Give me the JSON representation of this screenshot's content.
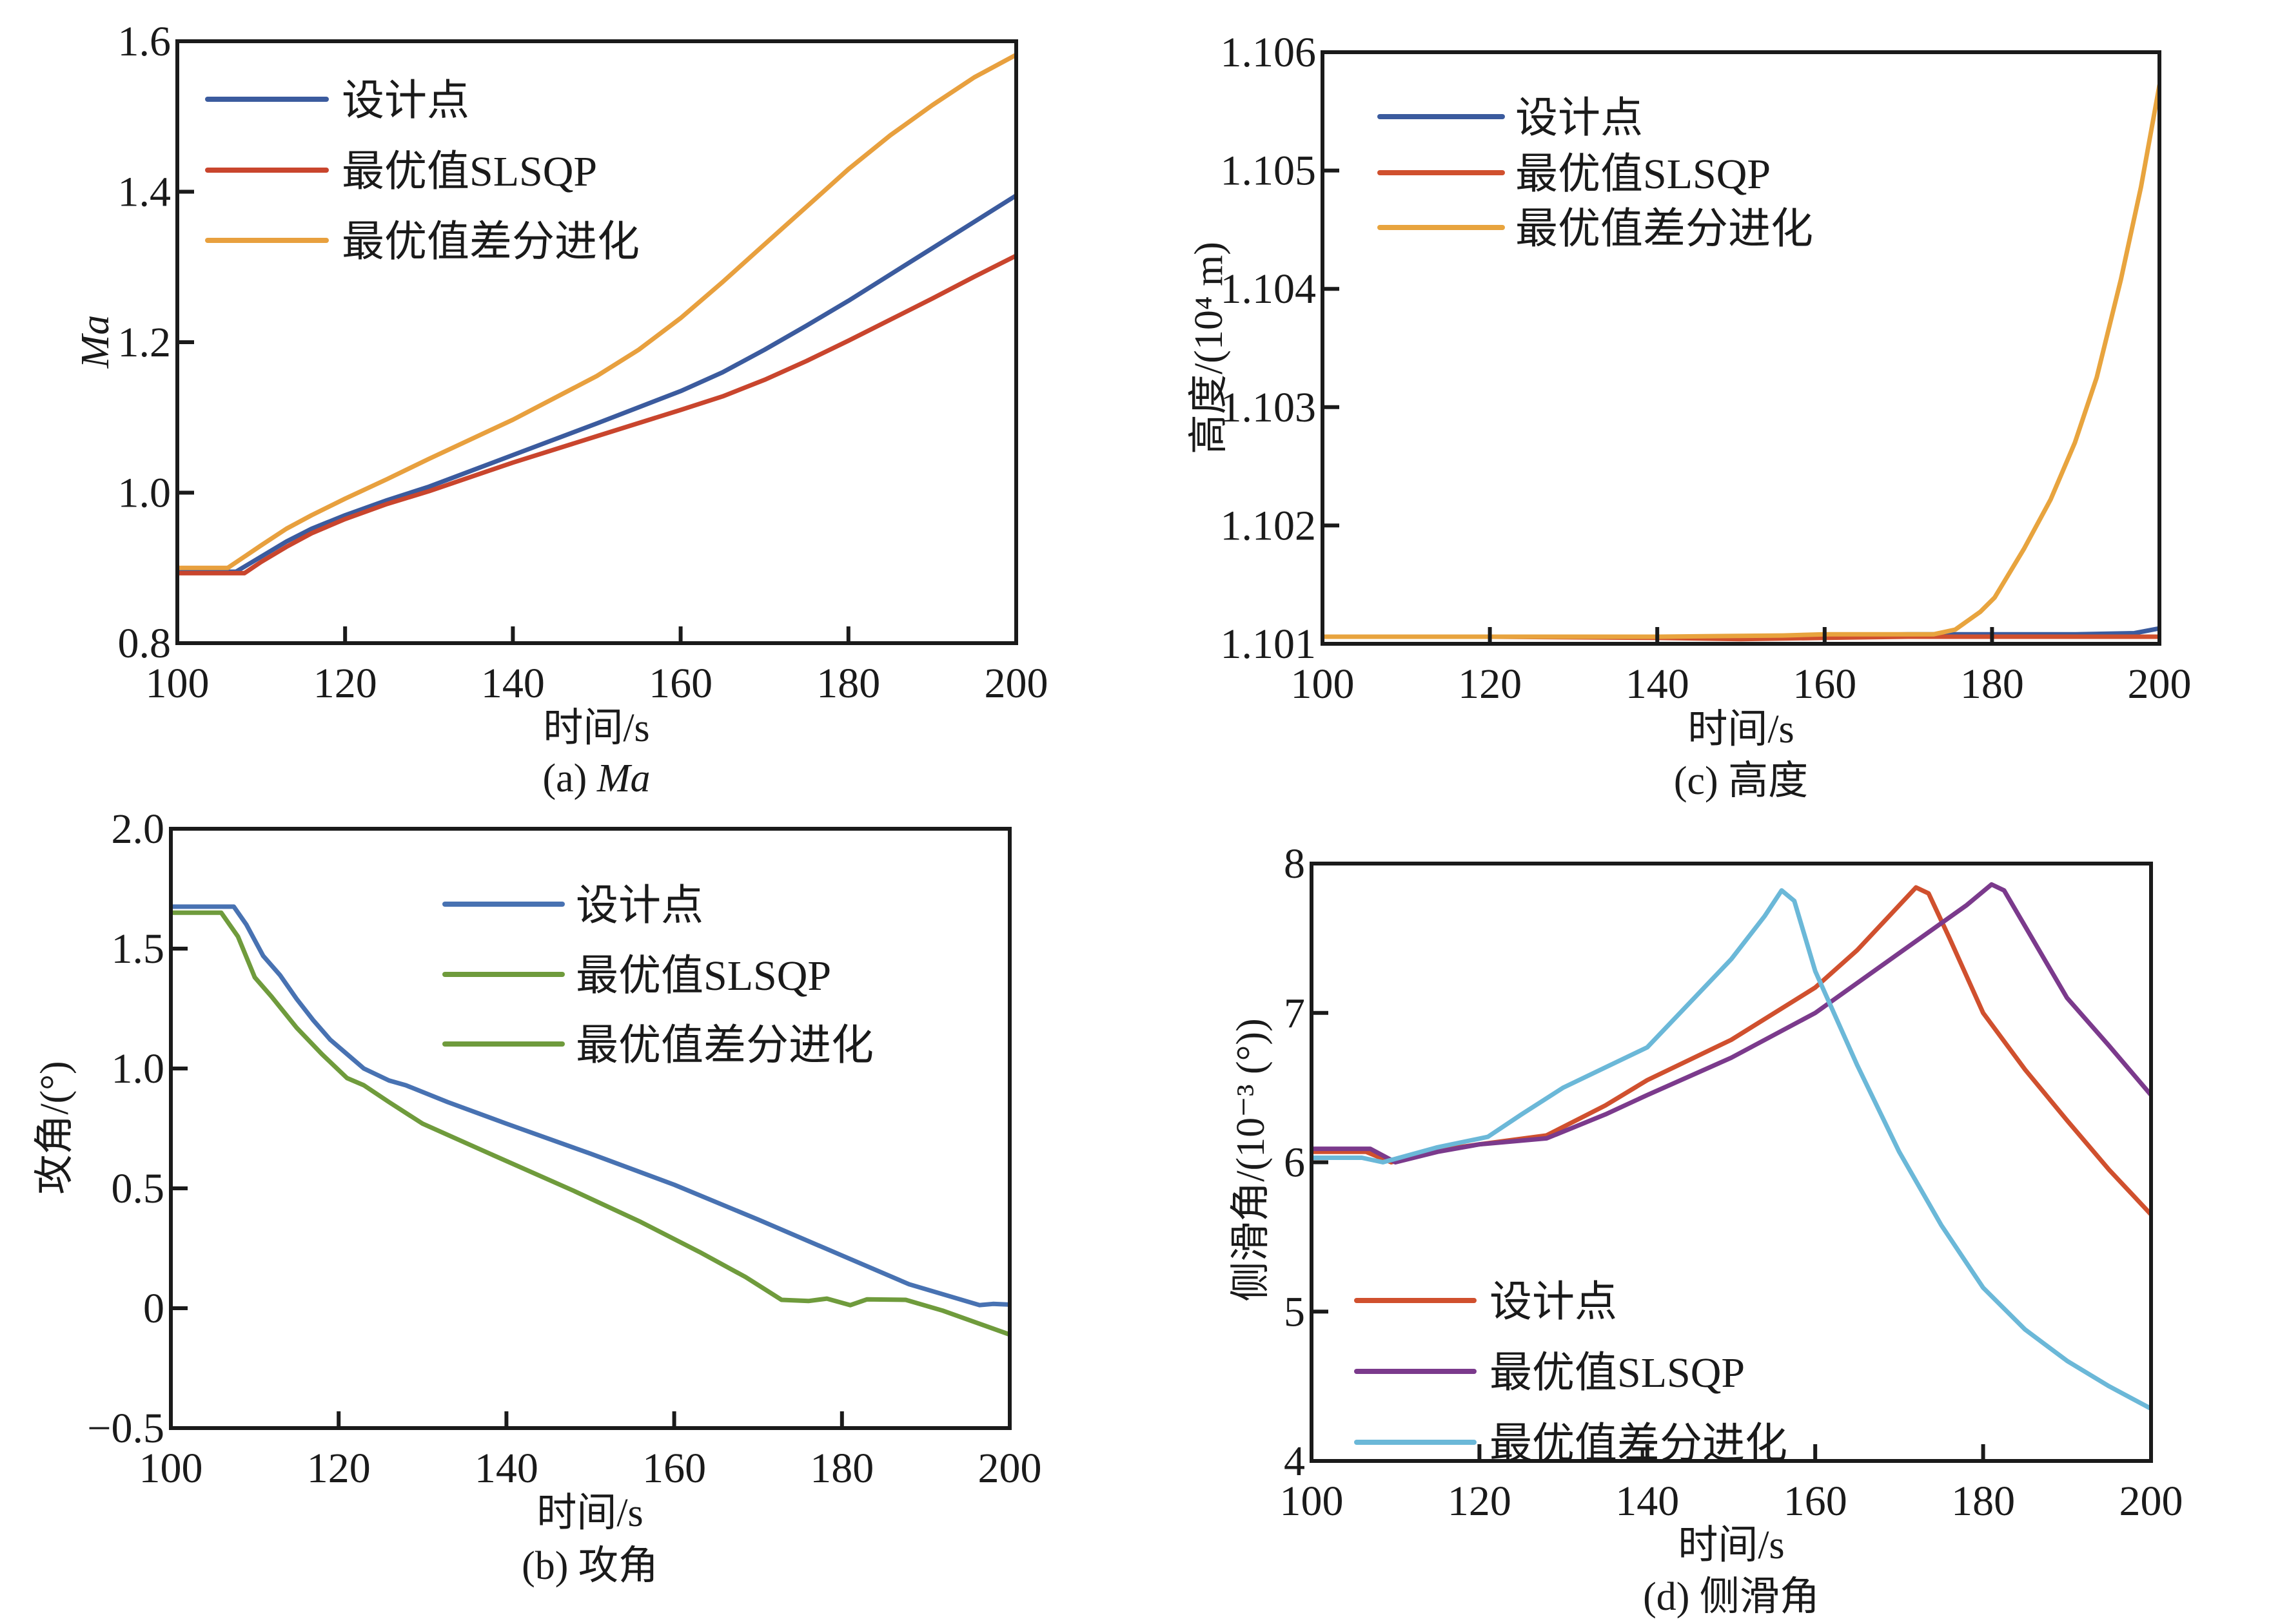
{
  "figure": {
    "panels_order": [
      "a",
      "c",
      "b",
      "d"
    ]
  },
  "chart_data": [
    {
      "id": "a",
      "type": "line",
      "caption": "(a) Ma",
      "caption_prefix": "(a) ",
      "caption_main": "Ma",
      "caption_italic": true,
      "xlabel": "时间/s",
      "ylabel": "Ma",
      "ylabel_italic": true,
      "xlim": [
        100,
        200
      ],
      "ylim": [
        0.8,
        1.6
      ],
      "xticks": [
        100,
        120,
        140,
        160,
        180,
        200
      ],
      "xtick_labels": [
        "100",
        "120",
        "140",
        "160",
        "180",
        "200"
      ],
      "yticks": [
        0.8,
        1.0,
        1.2,
        1.4,
        1.6
      ],
      "ytick_labels": [
        "0.8",
        "1.0",
        "1.2",
        "1.4",
        "1.6"
      ],
      "grid": false,
      "legend_position": "top-left",
      "series": [
        {
          "name": "设计点",
          "color": "#3b5b9e",
          "x": [
            100,
            107,
            110,
            113,
            116,
            120,
            125,
            130,
            140,
            150,
            160,
            165,
            170,
            175,
            180,
            185,
            190,
            195,
            200
          ],
          "y": [
            0.895,
            0.895,
            0.915,
            0.935,
            0.952,
            0.97,
            0.99,
            1.008,
            1.05,
            1.092,
            1.135,
            1.16,
            1.19,
            1.222,
            1.255,
            1.29,
            1.325,
            1.36,
            1.395
          ]
        },
        {
          "name": "最优值SLSQP",
          "color": "#c9452d",
          "x": [
            100,
            108,
            110,
            113,
            116,
            120,
            125,
            130,
            140,
            150,
            160,
            165,
            170,
            175,
            180,
            185,
            190,
            195,
            200
          ],
          "y": [
            0.893,
            0.893,
            0.908,
            0.928,
            0.946,
            0.965,
            0.985,
            1.002,
            1.04,
            1.075,
            1.11,
            1.128,
            1.15,
            1.175,
            1.202,
            1.23,
            1.258,
            1.287,
            1.315
          ]
        },
        {
          "name": "最优值差分进化",
          "color": "#e8a03e",
          "x": [
            100,
            106,
            110,
            113,
            116,
            120,
            125,
            130,
            140,
            150,
            155,
            160,
            165,
            170,
            175,
            180,
            185,
            190,
            195,
            200
          ],
          "y": [
            0.9,
            0.9,
            0.93,
            0.952,
            0.97,
            0.992,
            1.018,
            1.045,
            1.097,
            1.155,
            1.19,
            1.232,
            1.28,
            1.33,
            1.38,
            1.43,
            1.475,
            1.515,
            1.552,
            1.582
          ]
        }
      ]
    },
    {
      "id": "c",
      "type": "line",
      "caption": "(c) 高度",
      "caption_prefix": "(c) ",
      "caption_main": "高度",
      "caption_italic": false,
      "xlabel": "时间/s",
      "ylabel": "高度/(10⁴ m)",
      "ylabel_italic": false,
      "xlim": [
        100,
        200
      ],
      "ylim": [
        1.101,
        1.106
      ],
      "xticks": [
        100,
        120,
        140,
        160,
        180,
        200
      ],
      "xtick_labels": [
        "100",
        "120",
        "140",
        "160",
        "180",
        "200"
      ],
      "yticks": [
        1.101,
        1.102,
        1.103,
        1.104,
        1.105,
        1.106
      ],
      "ytick_labels": [
        "1.101",
        "1.102",
        "1.103",
        "1.104",
        "1.105",
        "1.106"
      ],
      "grid": false,
      "legend_position": "top-left",
      "series": [
        {
          "name": "设计点",
          "color": "#3b5b9e",
          "x": [
            100,
            120,
            140,
            150,
            160,
            170,
            175,
            180,
            190,
            197,
            200
          ],
          "y": [
            1.10106,
            1.10106,
            1.10106,
            1.10106,
            1.10107,
            1.10108,
            1.10108,
            1.10108,
            1.10108,
            1.10109,
            1.10113
          ]
        },
        {
          "name": "最优值SLSQP",
          "color": "#d0502e",
          "x": [
            100,
            120,
            140,
            150,
            160,
            170,
            180,
            190,
            200
          ],
          "y": [
            1.10106,
            1.10106,
            1.10105,
            1.10104,
            1.10105,
            1.10106,
            1.10106,
            1.10106,
            1.10106
          ]
        },
        {
          "name": "最优值差分进化",
          "color": "#e8a43e",
          "x": [
            100,
            120,
            140,
            155,
            160,
            170,
            173,
            175.6,
            178.6,
            180.3,
            183.8,
            187,
            189.9,
            192.5,
            195.4,
            197.8,
            200
          ],
          "y": [
            1.10106,
            1.10106,
            1.10106,
            1.10107,
            1.10108,
            1.10108,
            1.10108,
            1.10112,
            1.10127,
            1.10139,
            1.1018,
            1.10222,
            1.1027,
            1.10325,
            1.10408,
            1.10486,
            1.10572
          ]
        }
      ]
    },
    {
      "id": "b",
      "type": "line",
      "caption": "(b) 攻角",
      "caption_prefix": "(b) ",
      "caption_main": "攻角",
      "caption_italic": false,
      "xlabel": "时间/s",
      "ylabel": "攻角/(°)",
      "ylabel_italic": false,
      "xlim": [
        100,
        200
      ],
      "ylim": [
        -0.5,
        2.0
      ],
      "xticks": [
        100,
        120,
        140,
        160,
        180,
        200
      ],
      "xtick_labels": [
        "100",
        "120",
        "140",
        "160",
        "180",
        "200"
      ],
      "yticks": [
        -0.5,
        0,
        0.5,
        1.0,
        1.5,
        2.0
      ],
      "ytick_labels": [
        "−0.5",
        "0",
        "0.5",
        "1.0",
        "1.5",
        "2.0"
      ],
      "grid": false,
      "legend_position": "top-center",
      "series": [
        {
          "name": "设计点",
          "color": "#4872b2",
          "x": [
            100,
            107.5,
            109,
            111,
            113,
            115,
            117,
            119,
            121,
            123,
            126,
            128,
            133,
            140,
            150,
            160,
            170,
            180,
            188,
            196.4,
            198,
            200
          ],
          "y": [
            1.675,
            1.675,
            1.6,
            1.47,
            1.39,
            1.29,
            1.2,
            1.12,
            1.06,
            1.0,
            0.95,
            0.93,
            0.86,
            0.77,
            0.645,
            0.515,
            0.37,
            0.22,
            0.1,
            0.013,
            0.018,
            0.015
          ]
        },
        {
          "name": "最优值SLSQP",
          "color": "#6f9b3c",
          "x": [
            100,
            106,
            108,
            110,
            112,
            115,
            118,
            121,
            123,
            126,
            130,
            138,
            148,
            156,
            163,
            168.5,
            172.8,
            176,
            178.2,
            181,
            183,
            187.6,
            192,
            196,
            200
          ],
          "y": [
            1.65,
            1.65,
            1.55,
            1.38,
            1.3,
            1.17,
            1.06,
            0.96,
            0.93,
            0.86,
            0.77,
            0.645,
            0.49,
            0.36,
            0.235,
            0.13,
            0.035,
            0.03,
            0.04,
            0.013,
            0.037,
            0.035,
            -0.01,
            -0.06,
            -0.11
          ]
        },
        {
          "name": "最优值差分进化",
          "color": "#6f9b3c",
          "x": [],
          "y": []
        }
      ]
    },
    {
      "id": "d",
      "type": "line",
      "caption": "(d) 侧滑角",
      "caption_prefix": "(d) ",
      "caption_main": "侧滑角",
      "caption_italic": false,
      "xlabel": "时间/s",
      "ylabel": "侧滑角/(10⁻³ (°))",
      "ylabel_italic": false,
      "xlim": [
        100,
        200
      ],
      "ylim": [
        4,
        8
      ],
      "xticks": [
        100,
        120,
        140,
        160,
        180,
        200
      ],
      "xtick_labels": [
        "100",
        "120",
        "140",
        "160",
        "180",
        "200"
      ],
      "yticks": [
        4,
        5,
        6,
        7,
        8
      ],
      "ytick_labels": [
        "4",
        "5",
        "6",
        "7",
        "8"
      ],
      "grid": false,
      "legend_position": "bottom-left",
      "series": [
        {
          "name": "设计点",
          "color": "#d0502e",
          "x": [
            100,
            106.5,
            109.5,
            115,
            120,
            128,
            135,
            140,
            150,
            160,
            165,
            170,
            172,
            173.5,
            176,
            180,
            185,
            190,
            195,
            200
          ],
          "y": [
            6.07,
            6.07,
            6.0,
            6.08,
            6.12,
            6.18,
            6.38,
            6.55,
            6.82,
            7.17,
            7.42,
            7.72,
            7.84,
            7.8,
            7.5,
            7.0,
            6.62,
            6.28,
            5.95,
            5.65
          ]
        },
        {
          "name": "最优值SLSQP",
          "color": "#7b3a8c",
          "x": [
            100,
            107,
            110,
            115,
            120,
            128,
            135,
            140,
            150,
            160,
            170,
            178,
            181,
            182.5,
            185,
            190,
            195,
            200
          ],
          "y": [
            6.09,
            6.09,
            6.0,
            6.07,
            6.12,
            6.16,
            6.32,
            6.45,
            6.7,
            7.0,
            7.4,
            7.72,
            7.86,
            7.82,
            7.58,
            7.1,
            6.78,
            6.45
          ]
        },
        {
          "name": "最优值差分进化",
          "color": "#6bb8d8",
          "x": [
            100,
            106,
            108.5,
            115,
            121,
            125,
            130,
            140,
            150,
            154,
            156,
            157.5,
            160,
            165,
            170,
            175,
            180,
            185,
            190,
            195,
            200
          ],
          "y": [
            6.03,
            6.03,
            6.0,
            6.1,
            6.17,
            6.32,
            6.5,
            6.77,
            7.36,
            7.65,
            7.82,
            7.75,
            7.28,
            6.65,
            6.07,
            5.58,
            5.16,
            4.88,
            4.67,
            4.5,
            4.35
          ]
        }
      ]
    }
  ]
}
